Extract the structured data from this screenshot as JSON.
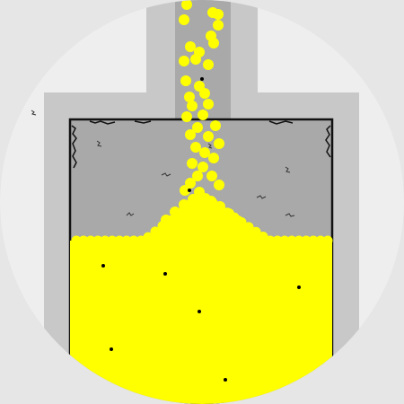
{
  "scene": {
    "background_color": "#e6e6e6",
    "vessel_wall_color": "#c8c8c8",
    "chamber_color": "#a9a9a9",
    "chute_color": "#a9a9a9",
    "chamber_border_color": "#111111",
    "grain_color": "#ffff00",
    "impurity_color": "#000000",
    "icons": {
      "vessel": "flask-vessel",
      "grain": "sand-grain",
      "impurity": "black-speck",
      "crack": "wall-crack"
    }
  }
}
